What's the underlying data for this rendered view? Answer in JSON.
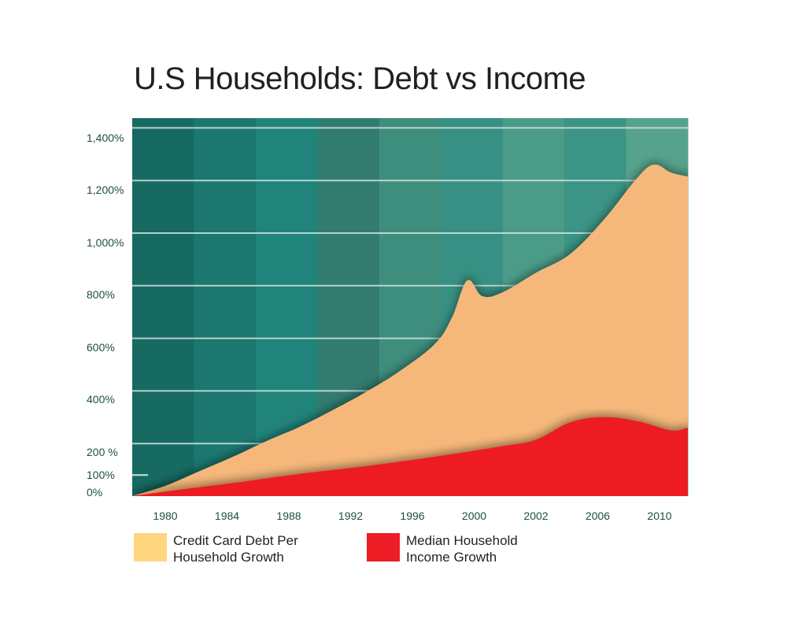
{
  "chart_data": {
    "type": "area",
    "title": "U.S Households: Debt vs Income",
    "xlabel": "",
    "ylabel": "",
    "x_ticks": [
      "1980",
      "1984",
      "1988",
      "1992",
      "1996",
      "2000",
      "2002",
      "2006",
      "2010"
    ],
    "y_ticks": [
      "0%",
      "100%",
      "200 %",
      "400%",
      "600%",
      "800%",
      "1,000%",
      "1,200%",
      "1,400%"
    ],
    "ylim": [
      0,
      1450
    ],
    "series": [
      {
        "name": "Credit Card Debt Per Household Growth",
        "color": "#f6b87a",
        "legend_color": "#ffd680",
        "points": [
          [
            1978,
            0
          ],
          [
            1980,
            40
          ],
          [
            1982,
            95
          ],
          [
            1984,
            150
          ],
          [
            1986,
            210
          ],
          [
            1988,
            265
          ],
          [
            1990,
            330
          ],
          [
            1992,
            400
          ],
          [
            1994,
            480
          ],
          [
            1996,
            580
          ],
          [
            1997,
            680
          ],
          [
            1997.9,
            820
          ],
          [
            1998.8,
            760
          ],
          [
            2000,
            775
          ],
          [
            2002,
            850
          ],
          [
            2004,
            920
          ],
          [
            2006,
            1050
          ],
          [
            2008,
            1210
          ],
          [
            2009,
            1260
          ],
          [
            2010,
            1230
          ],
          [
            2011,
            1215
          ]
        ]
      },
      {
        "name": "Median Household Income Growth",
        "color": "#ec1d24",
        "legend_color": "#ec1d24",
        "points": [
          [
            1978,
            0
          ],
          [
            1980,
            18
          ],
          [
            1984,
            50
          ],
          [
            1988,
            85
          ],
          [
            1992,
            115
          ],
          [
            1996,
            150
          ],
          [
            2000,
            190
          ],
          [
            2002,
            215
          ],
          [
            2004,
            280
          ],
          [
            2006,
            300
          ],
          [
            2008,
            285
          ],
          [
            2010,
            250
          ],
          [
            2011,
            260
          ]
        ]
      }
    ],
    "background_bands": [
      "#166a62",
      "#1c7770",
      "#21847b",
      "#317c6f",
      "#3e8e7d",
      "#379083",
      "#4a9c88",
      "#3b9485",
      "#56a28d"
    ],
    "grid": true
  }
}
